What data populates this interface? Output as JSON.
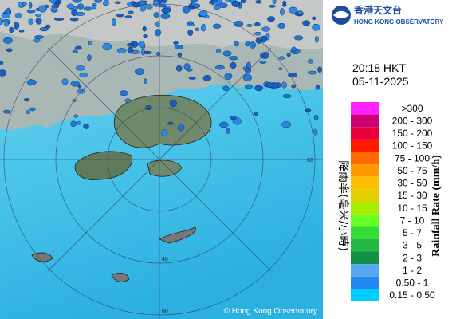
{
  "header": {
    "org_zh": "香港天文台",
    "org_en": "HONG KONG OBSERVATORY"
  },
  "time": "20:18 HKT",
  "date": "05-11-2025",
  "legend": {
    "title_zh": "降雨率(毫米/小時)",
    "title_en": "Rainfall Rate (mm/h)",
    "items": [
      {
        "label": ">300",
        "color": "#ff22ff"
      },
      {
        "label": "200 - 300",
        "color": "#cc0077"
      },
      {
        "label": "150 - 200",
        "color": "#e8003c"
      },
      {
        "label": "100 - 150",
        "color": "#ff1a00"
      },
      {
        "label": "75 - 100",
        "color": "#ff6a00"
      },
      {
        "label": "50 - 75",
        "color": "#ff9a00"
      },
      {
        "label": "30 - 50",
        "color": "#ffbf00"
      },
      {
        "label": "15 - 30",
        "color": "#e2d000"
      },
      {
        "label": "10 - 15",
        "color": "#a8ee00"
      },
      {
        "label": "7 - 10",
        "color": "#66ff22"
      },
      {
        "label": "5 - 7",
        "color": "#33dd33"
      },
      {
        "label": "3 - 5",
        "color": "#22b844"
      },
      {
        "label": "2 - 3",
        "color": "#139048"
      },
      {
        "label": "1 - 2",
        "color": "#55a8f0"
      },
      {
        "label": "0.50 - 1",
        "color": "#2288ee"
      },
      {
        "label": "0.15 - 0.50",
        "color": "#00ccff"
      }
    ]
  },
  "copyright": "© Hong Kong Observatory",
  "rings": [
    "60",
    "40",
    "60"
  ]
}
